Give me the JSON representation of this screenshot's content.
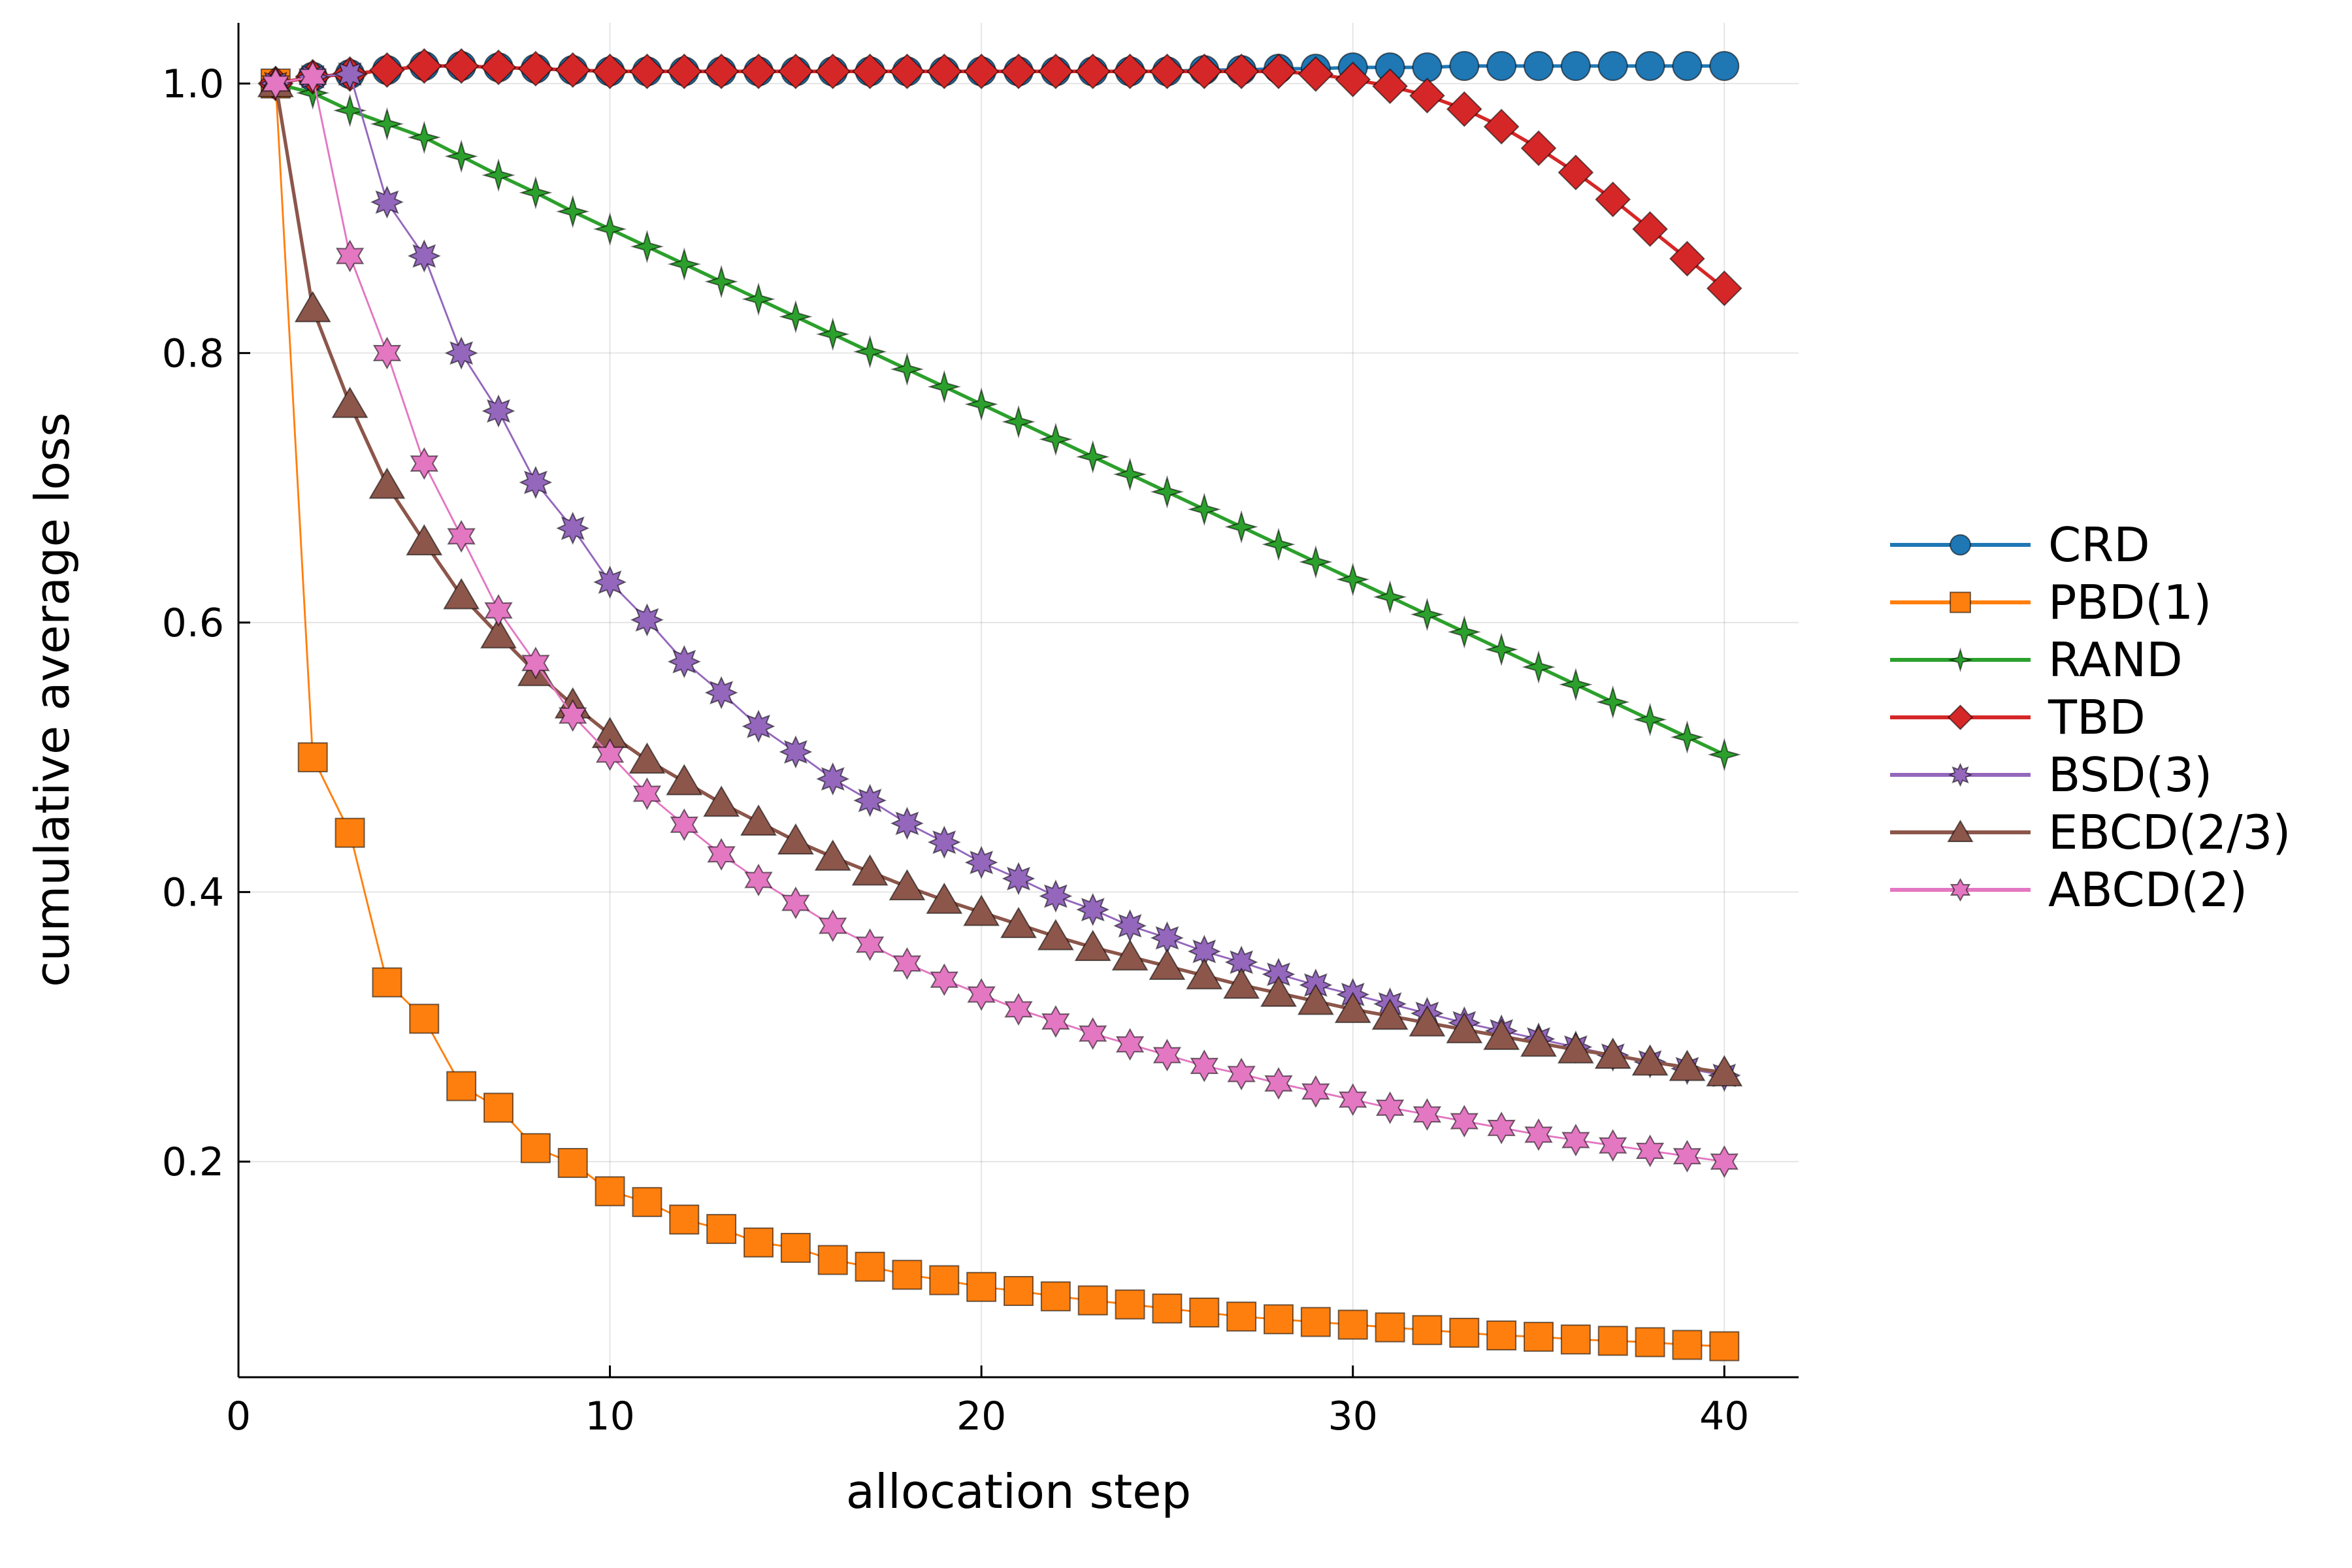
{
  "chart_data": {
    "type": "line",
    "title": "",
    "xlabel": "allocation step",
    "ylabel": "cumulative average loss",
    "xlim": [
      0,
      42
    ],
    "ylim": [
      0.04,
      1.045
    ],
    "xticks": [
      0,
      10,
      20,
      30,
      40
    ],
    "yticks": [
      0.2,
      0.4,
      0.6,
      0.8,
      1.0
    ],
    "xtick_labels": [
      "0",
      "10",
      "20",
      "30",
      "40"
    ],
    "ytick_labels": [
      "0.2",
      "0.4",
      "0.6",
      "0.8",
      "1.0"
    ],
    "grid": true,
    "legend_position": "right",
    "x": [
      1,
      2,
      3,
      4,
      5,
      6,
      7,
      8,
      9,
      10,
      11,
      12,
      13,
      14,
      15,
      16,
      17,
      18,
      19,
      20,
      21,
      22,
      23,
      24,
      25,
      26,
      27,
      28,
      29,
      30,
      31,
      32,
      33,
      34,
      35,
      36,
      37,
      38,
      39,
      40
    ],
    "series": [
      {
        "name": "CRD",
        "color": "#1f77b4",
        "marker": "circle",
        "line_width": 2.2,
        "values": [
          1.0,
          1.005,
          1.007,
          1.01,
          1.013,
          1.013,
          1.012,
          1.011,
          1.01,
          1.009,
          1.009,
          1.009,
          1.009,
          1.009,
          1.009,
          1.009,
          1.009,
          1.009,
          1.009,
          1.009,
          1.009,
          1.009,
          1.009,
          1.009,
          1.009,
          1.01,
          1.01,
          1.011,
          1.011,
          1.012,
          1.012,
          1.012,
          1.013,
          1.013,
          1.013,
          1.013,
          1.013,
          1.013,
          1.013,
          1.013
        ]
      },
      {
        "name": "PBD(1)",
        "color": "#ff7f0e",
        "marker": "square",
        "line_width": 1.2,
        "values": [
          1.0,
          0.5,
          0.444,
          0.333,
          0.306,
          0.256,
          0.24,
          0.21,
          0.199,
          0.178,
          0.17,
          0.157,
          0.15,
          0.14,
          0.136,
          0.127,
          0.122,
          0.116,
          0.112,
          0.107,
          0.104,
          0.1,
          0.097,
          0.094,
          0.091,
          0.088,
          0.085,
          0.083,
          0.081,
          0.079,
          0.077,
          0.075,
          0.073,
          0.071,
          0.07,
          0.068,
          0.067,
          0.066,
          0.064,
          0.063
        ]
      },
      {
        "name": "RAND",
        "color": "#2ca02c",
        "marker": "star4",
        "line_width": 2.2,
        "values": [
          1.0,
          0.993,
          0.98,
          0.97,
          0.96,
          0.946,
          0.932,
          0.919,
          0.905,
          0.892,
          0.879,
          0.866,
          0.853,
          0.84,
          0.827,
          0.814,
          0.801,
          0.788,
          0.775,
          0.762,
          0.749,
          0.736,
          0.723,
          0.71,
          0.697,
          0.684,
          0.671,
          0.658,
          0.645,
          0.632,
          0.619,
          0.606,
          0.593,
          0.58,
          0.567,
          0.554,
          0.541,
          0.528,
          0.515,
          0.502
        ]
      },
      {
        "name": "TBD",
        "color": "#d62728",
        "marker": "diamond",
        "line_width": 2.2,
        "values": [
          1.0,
          1.005,
          1.007,
          1.01,
          1.013,
          1.013,
          1.012,
          1.011,
          1.01,
          1.009,
          1.009,
          1.009,
          1.009,
          1.009,
          1.009,
          1.009,
          1.009,
          1.009,
          1.009,
          1.009,
          1.009,
          1.009,
          1.009,
          1.009,
          1.009,
          1.009,
          1.009,
          1.009,
          1.007,
          1.003,
          0.998,
          0.991,
          0.981,
          0.968,
          0.952,
          0.934,
          0.914,
          0.892,
          0.87,
          0.848
        ]
      },
      {
        "name": "BSD(3)",
        "color": "#9467bd",
        "marker": "star8",
        "line_width": 1.2,
        "values": [
          1.0,
          1.005,
          1.007,
          0.912,
          0.872,
          0.8,
          0.757,
          0.704,
          0.67,
          0.63,
          0.602,
          0.571,
          0.548,
          0.523,
          0.504,
          0.484,
          0.468,
          0.451,
          0.437,
          0.422,
          0.41,
          0.397,
          0.387,
          0.375,
          0.366,
          0.356,
          0.348,
          0.339,
          0.331,
          0.324,
          0.317,
          0.31,
          0.303,
          0.297,
          0.291,
          0.285,
          0.279,
          0.274,
          0.269,
          0.264
        ]
      },
      {
        "name": "EBCD(2/3)",
        "color": "#8c564b",
        "marker": "triangle",
        "line_width": 2.2,
        "values": [
          1.0,
          0.833,
          0.762,
          0.702,
          0.66,
          0.62,
          0.591,
          0.563,
          0.539,
          0.517,
          0.498,
          0.482,
          0.466,
          0.452,
          0.438,
          0.426,
          0.415,
          0.404,
          0.394,
          0.385,
          0.376,
          0.367,
          0.359,
          0.352,
          0.345,
          0.338,
          0.331,
          0.325,
          0.319,
          0.313,
          0.308,
          0.303,
          0.298,
          0.293,
          0.288,
          0.283,
          0.279,
          0.274,
          0.27,
          0.266
        ]
      },
      {
        "name": "ABCD(2)",
        "color": "#e377c2",
        "marker": "star6",
        "line_width": 1.2,
        "values": [
          1.0,
          1.005,
          0.872,
          0.8,
          0.718,
          0.664,
          0.609,
          0.57,
          0.531,
          0.502,
          0.473,
          0.45,
          0.428,
          0.409,
          0.392,
          0.375,
          0.361,
          0.347,
          0.335,
          0.324,
          0.313,
          0.304,
          0.295,
          0.287,
          0.279,
          0.271,
          0.265,
          0.258,
          0.252,
          0.246,
          0.24,
          0.235,
          0.23,
          0.225,
          0.22,
          0.216,
          0.212,
          0.208,
          0.204,
          0.2
        ]
      }
    ]
  }
}
